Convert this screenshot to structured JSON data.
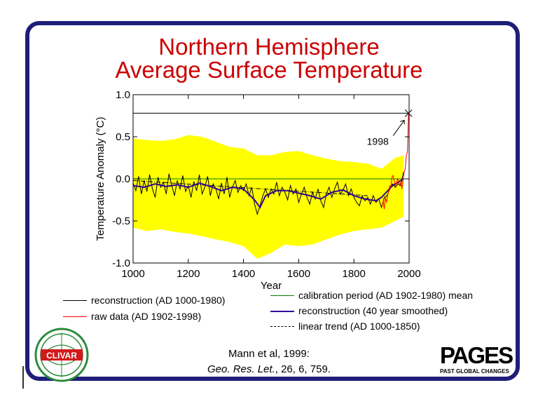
{
  "title_line1": "Northern Hemisphere",
  "title_line2": "Average Surface Temperature",
  "chart_data": {
    "type": "line",
    "xlabel": "Year",
    "ylabel": "Temperature Anomaly (°C)",
    "xlim": [
      1000,
      2000
    ],
    "ylim": [
      -1.0,
      1.0
    ],
    "x_ticks": [
      1000,
      1200,
      1400,
      1600,
      1800,
      2000
    ],
    "y_ticks": [
      -1.0,
      -0.5,
      0.0,
      0.5,
      1.0
    ],
    "x_tick_labels": [
      "1000",
      "1200",
      "1400",
      "1600",
      "1800",
      "2000"
    ],
    "y_tick_labels": [
      "-1.0",
      "-0.5",
      "0.0",
      "0.5",
      "1.0"
    ],
    "uncertainty_band": {
      "color": "#ffff00",
      "x": [
        1000,
        1050,
        1100,
        1150,
        1200,
        1250,
        1300,
        1350,
        1400,
        1450,
        1500,
        1550,
        1600,
        1650,
        1700,
        1750,
        1800,
        1850,
        1900,
        1950,
        1980
      ],
      "upper": [
        0.48,
        0.46,
        0.45,
        0.47,
        0.52,
        0.5,
        0.44,
        0.38,
        0.36,
        0.28,
        0.28,
        0.32,
        0.33,
        0.28,
        0.24,
        0.21,
        0.2,
        0.18,
        0.12,
        0.25,
        0.28
      ],
      "lower": [
        -0.58,
        -0.62,
        -0.6,
        -0.63,
        -0.65,
        -0.68,
        -0.72,
        -0.75,
        -0.8,
        -0.95,
        -0.88,
        -0.78,
        -0.8,
        -0.78,
        -0.72,
        -0.66,
        -0.62,
        -0.6,
        -0.58,
        -0.5,
        -0.45
      ]
    },
    "series": [
      {
        "name": "reconstruction (AD 1000-1980)",
        "color": "#000000",
        "x": [
          1000,
          1010,
          1020,
          1030,
          1040,
          1050,
          1060,
          1070,
          1080,
          1090,
          1100,
          1110,
          1120,
          1130,
          1140,
          1150,
          1160,
          1170,
          1180,
          1190,
          1200,
          1210,
          1220,
          1230,
          1240,
          1250,
          1260,
          1270,
          1280,
          1290,
          1300,
          1310,
          1320,
          1330,
          1340,
          1350,
          1360,
          1370,
          1380,
          1390,
          1400,
          1410,
          1420,
          1430,
          1440,
          1450,
          1460,
          1470,
          1480,
          1490,
          1500,
          1510,
          1520,
          1530,
          1540,
          1550,
          1560,
          1570,
          1580,
          1590,
          1600,
          1610,
          1620,
          1630,
          1640,
          1650,
          1660,
          1670,
          1680,
          1690,
          1700,
          1710,
          1720,
          1730,
          1740,
          1750,
          1760,
          1770,
          1780,
          1790,
          1800,
          1810,
          1820,
          1830,
          1840,
          1850,
          1860,
          1870,
          1880,
          1890,
          1900,
          1910,
          1920,
          1930,
          1940,
          1950,
          1960,
          1970,
          1980
        ],
        "y": [
          -0.05,
          -0.14,
          0.03,
          -0.18,
          -0.02,
          -0.15,
          0.05,
          -0.12,
          -0.22,
          0.02,
          -0.1,
          -0.04,
          -0.18,
          0.06,
          -0.08,
          -0.2,
          -0.02,
          -0.12,
          0.04,
          -0.15,
          -0.08,
          -0.22,
          -0.03,
          -0.14,
          0.05,
          -0.18,
          -0.1,
          0.03,
          -0.2,
          -0.06,
          -0.12,
          -0.24,
          -0.05,
          -0.18,
          0.02,
          -0.22,
          -0.1,
          -0.02,
          -0.16,
          -0.08,
          -0.14,
          -0.06,
          -0.2,
          -0.1,
          -0.3,
          -0.42,
          -0.32,
          -0.2,
          -0.12,
          -0.22,
          -0.12,
          -0.18,
          -0.04,
          -0.2,
          -0.1,
          -0.16,
          -0.25,
          -0.08,
          -0.18,
          -0.12,
          -0.28,
          -0.18,
          -0.1,
          -0.22,
          -0.3,
          -0.16,
          -0.24,
          -0.12,
          -0.26,
          -0.34,
          -0.18,
          -0.1,
          -0.22,
          -0.12,
          -0.04,
          -0.18,
          -0.14,
          -0.06,
          -0.2,
          -0.12,
          -0.22,
          -0.28,
          -0.32,
          -0.2,
          -0.26,
          -0.22,
          -0.3,
          -0.2,
          -0.28,
          -0.24,
          -0.34,
          -0.22,
          -0.2,
          -0.12,
          -0.06,
          -0.1,
          -0.06,
          -0.08,
          0.08
        ]
      },
      {
        "name": "raw data (AD 1902-1998)",
        "color": "#ff0000",
        "x": [
          1902,
          1906,
          1910,
          1914,
          1918,
          1922,
          1926,
          1930,
          1934,
          1938,
          1942,
          1946,
          1950,
          1954,
          1958,
          1962,
          1966,
          1970,
          1974,
          1978,
          1982,
          1986,
          1990,
          1994,
          1998
        ],
        "y": [
          -0.32,
          -0.26,
          -0.36,
          -0.22,
          -0.28,
          -0.2,
          -0.14,
          -0.08,
          -0.1,
          0.02,
          0.04,
          -0.02,
          -0.08,
          -0.06,
          0.0,
          -0.02,
          -0.08,
          -0.04,
          -0.12,
          -0.02,
          0.08,
          0.12,
          0.28,
          0.32,
          0.78
        ]
      },
      {
        "name": "reconstruction (40 year smoothed)",
        "color": "#330099",
        "x": [
          1000,
          1040,
          1080,
          1120,
          1160,
          1200,
          1240,
          1280,
          1320,
          1360,
          1400,
          1440,
          1460,
          1480,
          1520,
          1560,
          1600,
          1640,
          1680,
          1720,
          1760,
          1800,
          1840,
          1880,
          1900,
          1940,
          1980
        ],
        "y": [
          -0.08,
          -0.1,
          -0.06,
          -0.09,
          -0.07,
          -0.1,
          -0.05,
          -0.09,
          -0.14,
          -0.1,
          -0.12,
          -0.25,
          -0.34,
          -0.2,
          -0.14,
          -0.14,
          -0.17,
          -0.2,
          -0.24,
          -0.16,
          -0.13,
          -0.2,
          -0.24,
          -0.26,
          -0.22,
          -0.08,
          0.0
        ]
      },
      {
        "name": "calibration period (AD 1902-1980) mean",
        "color": "#008000",
        "x": [
          1000,
          2000
        ],
        "y": [
          0.0,
          0.0
        ]
      },
      {
        "name": "linear trend (AD 1000-1850)",
        "color": "#000000",
        "x": [
          1000,
          1850
        ],
        "y": [
          -0.02,
          -0.2
        ]
      }
    ],
    "reference_line": {
      "y": 0.78,
      "color": "#000000"
    },
    "annotation": {
      "text": "1998",
      "x": 1998,
      "y": 0.78
    }
  },
  "legend": {
    "left": [
      {
        "label": "reconstruction (AD 1000-1980)",
        "color": "#000000",
        "style": "solid"
      },
      {
        "label": "raw data (AD 1902-1998)",
        "color": "#ff0000",
        "style": "solid"
      }
    ],
    "right": [
      {
        "label": "calibration period (AD 1902-1980) mean",
        "color": "#008000",
        "style": "solid"
      },
      {
        "label": "reconstruction (40 year smoothed)",
        "color": "#330099",
        "style": "solid"
      },
      {
        "label": "linear trend (AD 1000-1850)",
        "color": "#000000",
        "style": "dashdot"
      }
    ]
  },
  "citation": {
    "line1": "Mann et al, 1999:",
    "journal": "Geo. Res. Let.",
    "rest": ", 26, 6, 759."
  },
  "logos": {
    "clivar": "CLIVAR",
    "pages": "PAGES",
    "pages_sub": "PAST GLOBAL CHANGES"
  },
  "colors": {
    "frame": "#1e1e78",
    "title": "#cc0000"
  }
}
